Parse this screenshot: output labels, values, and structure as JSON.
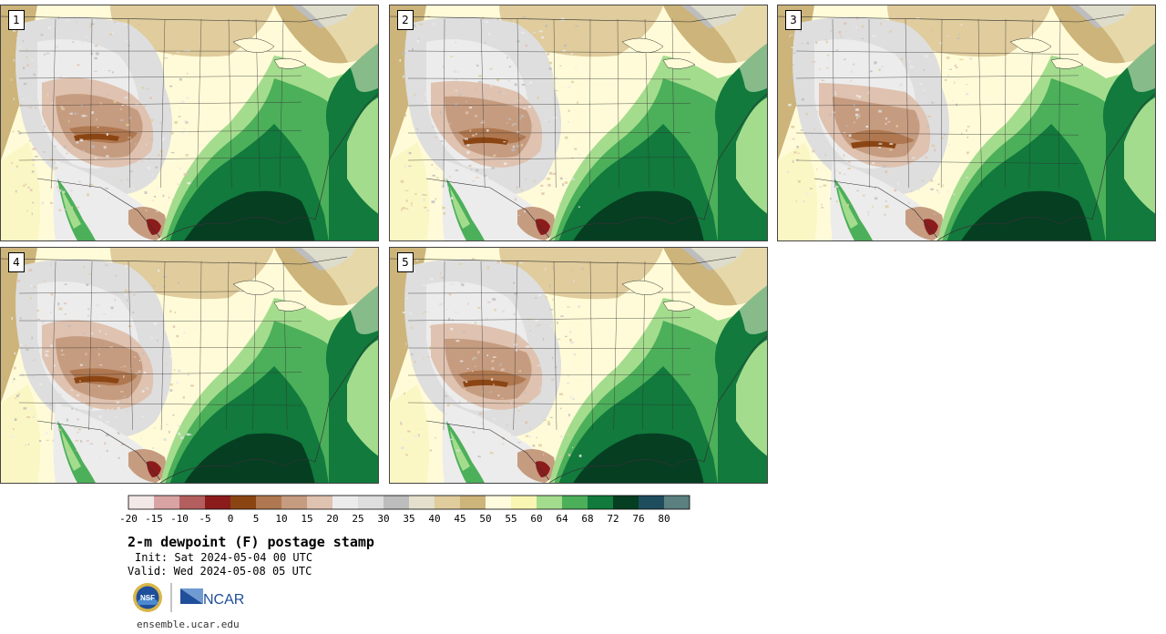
{
  "panels": [
    {
      "label": "1"
    },
    {
      "label": "2"
    },
    {
      "label": "3"
    },
    {
      "label": "4"
    },
    {
      "label": "5"
    }
  ],
  "colorbar": {
    "colors": [
      "#f3e8e8",
      "#d9a3a3",
      "#b35f5f",
      "#8c1c1c",
      "#8b4513",
      "#b07850",
      "#c69c80",
      "#dfc2b0",
      "#ececec",
      "#dedede",
      "#bdbdbd",
      "#e4e0cc",
      "#e0cc9c",
      "#ccb47a",
      "#fffcde",
      "#f8f6b2",
      "#a4dc8e",
      "#4caf5a",
      "#117a3c",
      "#063e22",
      "#1e4d5e",
      "#5c7f80"
    ],
    "ticks": [
      "-20",
      "-15",
      "-10",
      "-5",
      "0",
      "5",
      "10",
      "15",
      "20",
      "25",
      "30",
      "35",
      "40",
      "45",
      "50",
      "55",
      "60",
      "64",
      "68",
      "72",
      "76",
      "80"
    ]
  },
  "title": "2-m dewpoint (F) postage stamp",
  "init": "Init: Sat 2024-05-04 00 UTC",
  "valid": "Valid: Wed 2024-05-08 05 UTC",
  "logos": {
    "left": "nsf-logo",
    "right": "ncar-logo",
    "nsf_text": "NSF",
    "ncar_text": "NCAR"
  },
  "url": "ensemble.ucar.edu"
}
